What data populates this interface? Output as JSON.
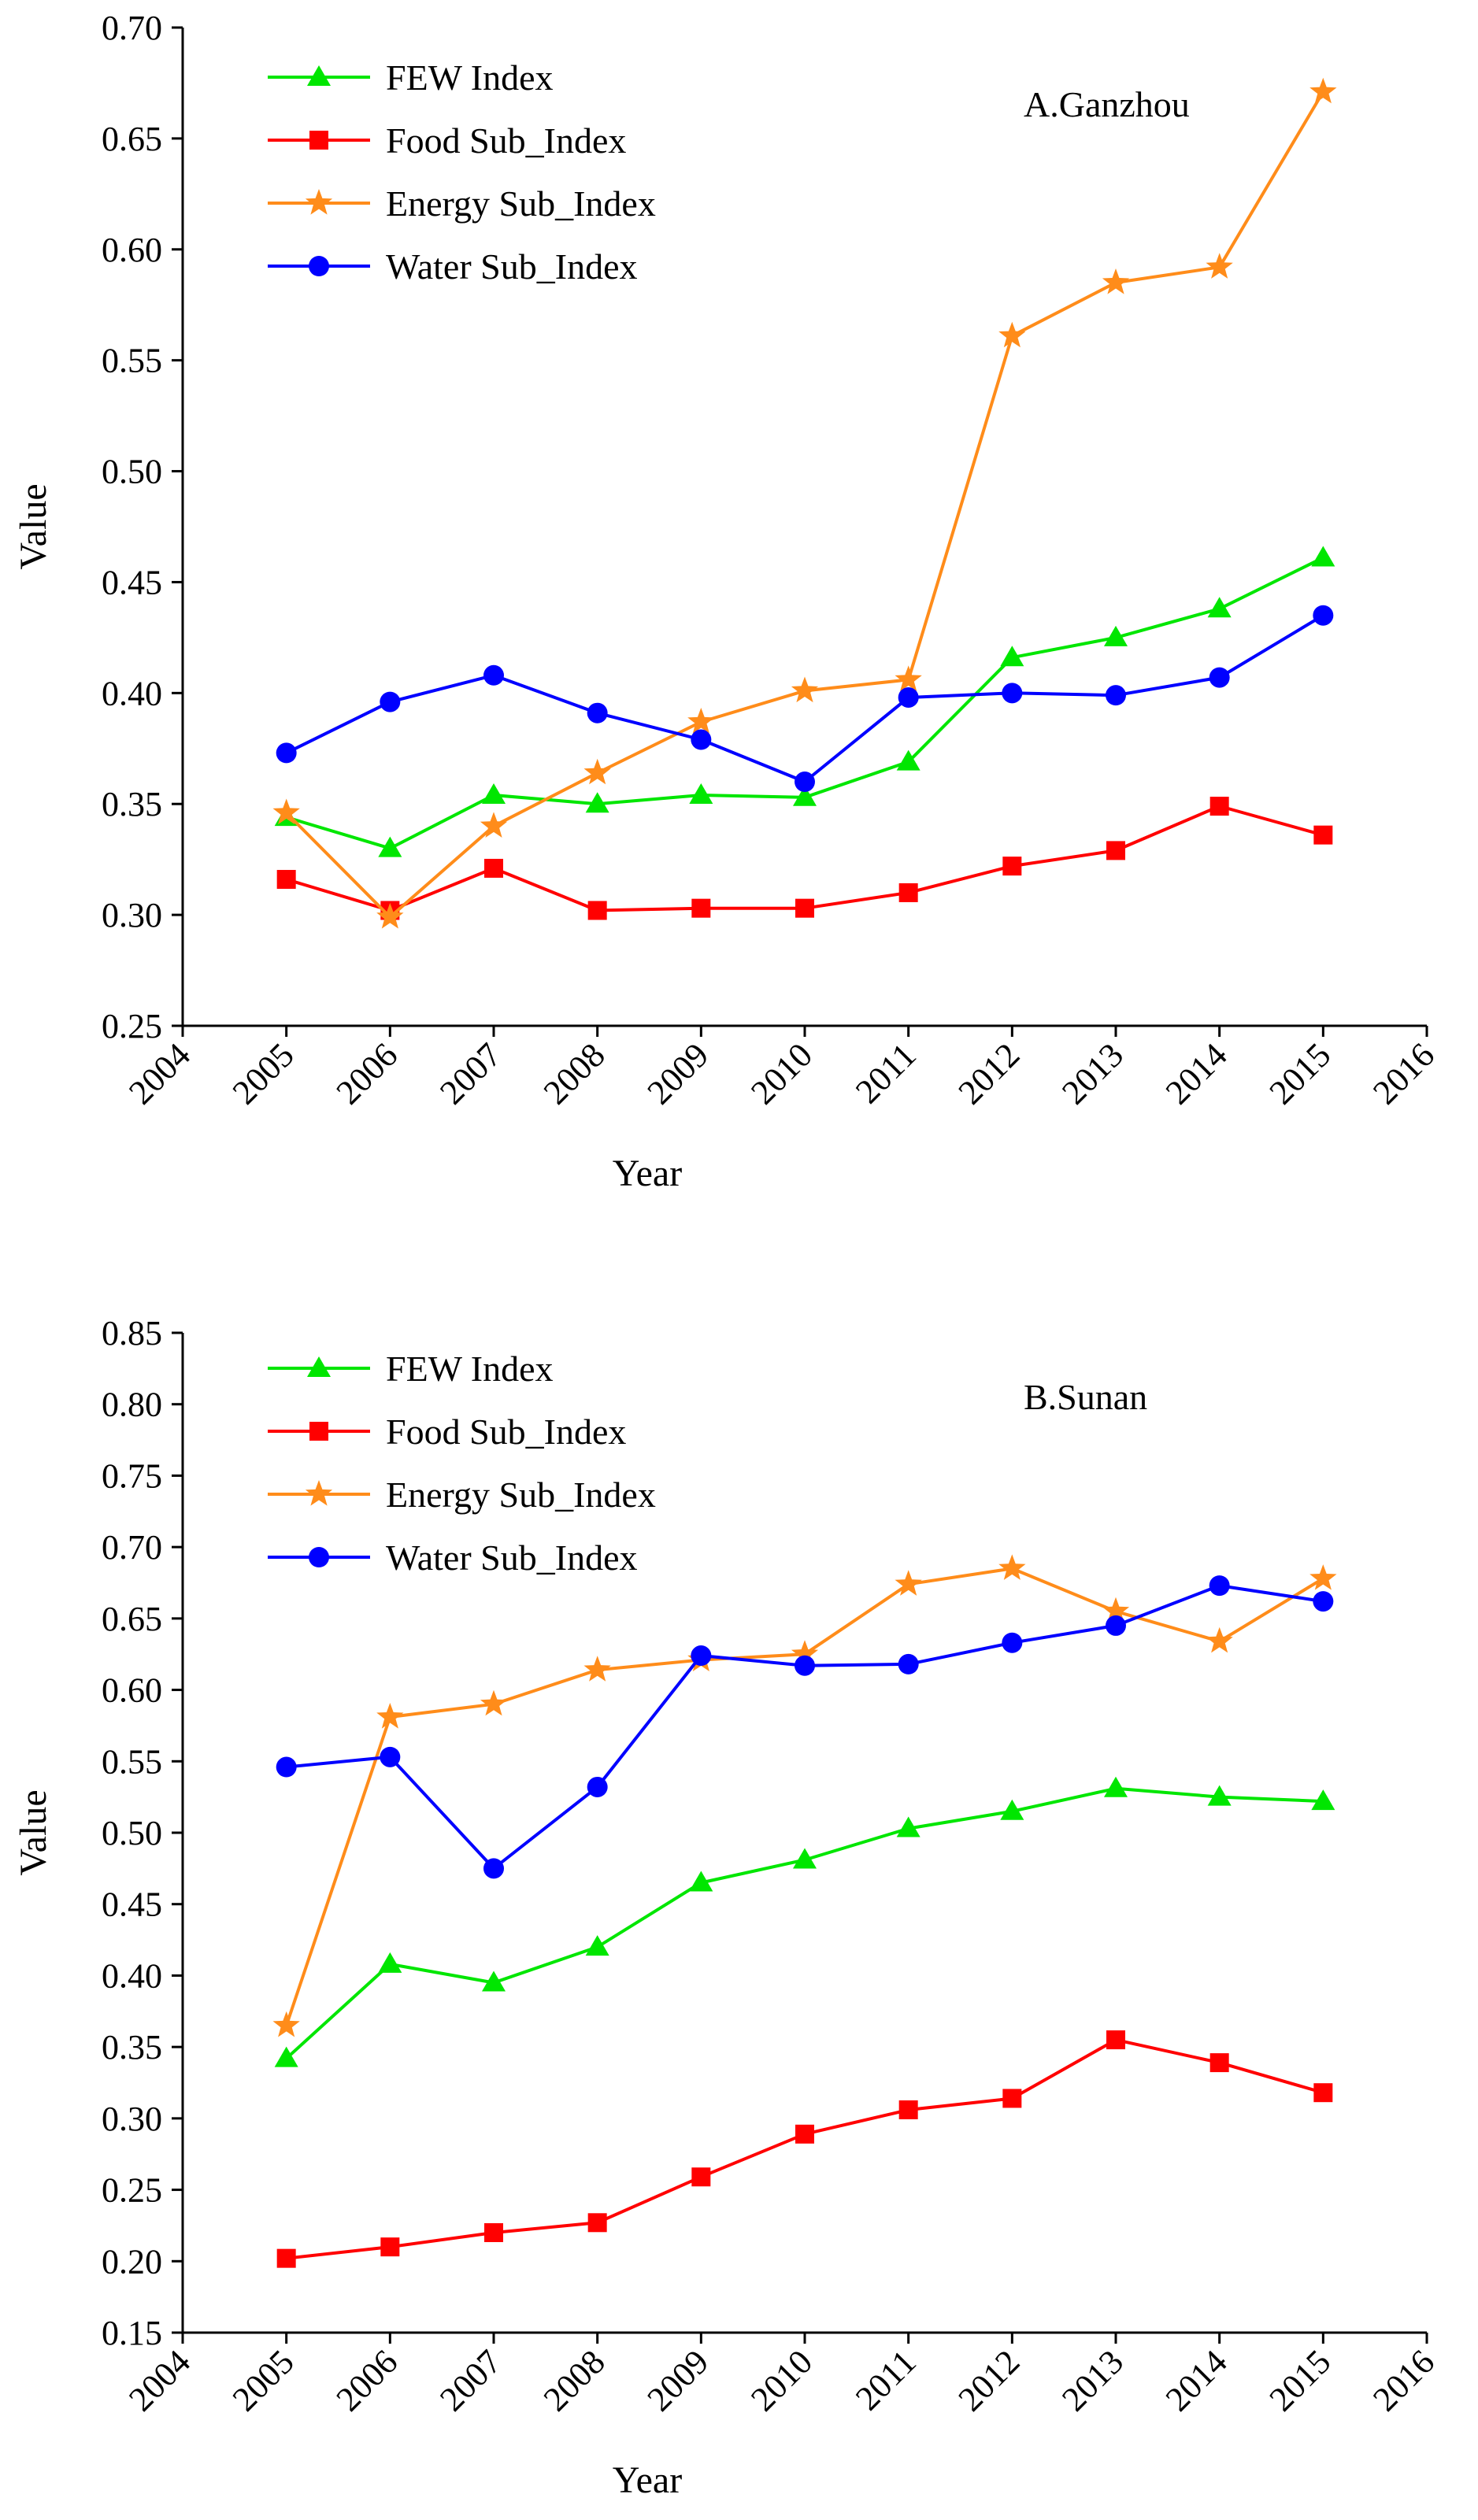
{
  "chart_data": [
    {
      "type": "line",
      "title": "A.Ganzhou",
      "xlabel": "Year",
      "ylabel": "Value",
      "xlim": [
        2004,
        2016
      ],
      "ylim": [
        0.25,
        0.7
      ],
      "x_ticks": [
        "2004",
        "2005",
        "2006",
        "2007",
        "2008",
        "2009",
        "2010",
        "2011",
        "2012",
        "2013",
        "2014",
        "2015",
        "2016"
      ],
      "y_ticks": [
        "0.25",
        "0.30",
        "0.35",
        "0.40",
        "0.45",
        "0.50",
        "0.55",
        "0.60",
        "0.65",
        "0.70"
      ],
      "x": [
        2005,
        2006,
        2007,
        2008,
        2009,
        2010,
        2011,
        2012,
        2013,
        2014,
        2015
      ],
      "legend_position": "top-left",
      "series": [
        {
          "name": "FEW Index",
          "color": "#00e600",
          "marker": "triangle",
          "values": [
            0.344,
            0.33,
            0.354,
            0.35,
            0.354,
            0.353,
            0.369,
            0.416,
            0.425,
            0.438,
            0.461
          ]
        },
        {
          "name": "Food Sub_Index",
          "color": "#ff0000",
          "marker": "square",
          "values": [
            0.316,
            0.302,
            0.321,
            0.302,
            0.303,
            0.303,
            0.31,
            0.322,
            0.329,
            0.349,
            0.336
          ]
        },
        {
          "name": "Energy Sub_Index",
          "color": "#ff8c1a",
          "marker": "star",
          "values": [
            0.346,
            0.299,
            0.34,
            0.364,
            0.387,
            0.401,
            0.406,
            0.561,
            0.585,
            0.592,
            0.671
          ]
        },
        {
          "name": "Water Sub_Index",
          "color": "#0000ff",
          "marker": "circle",
          "values": [
            0.373,
            0.396,
            0.408,
            0.391,
            0.379,
            0.36,
            0.398,
            0.4,
            0.399,
            0.407,
            0.435
          ]
        }
      ]
    },
    {
      "type": "line",
      "title": "B.Sunan",
      "xlabel": "Year",
      "ylabel": "Value",
      "xlim": [
        2004,
        2016
      ],
      "ylim": [
        0.15,
        0.85
      ],
      "x_ticks": [
        "2004",
        "2005",
        "2006",
        "2007",
        "2008",
        "2009",
        "2010",
        "2011",
        "2012",
        "2013",
        "2014",
        "2015",
        "2016"
      ],
      "y_ticks": [
        "0.15",
        "0.20",
        "0.25",
        "0.30",
        "0.35",
        "0.40",
        "0.45",
        "0.50",
        "0.55",
        "0.60",
        "0.65",
        "0.70",
        "0.75",
        "0.80",
        "0.85"
      ],
      "x": [
        2005,
        2006,
        2007,
        2008,
        2009,
        2010,
        2011,
        2012,
        2013,
        2014,
        2015
      ],
      "legend_position": "top-left",
      "series": [
        {
          "name": "FEW Index",
          "color": "#00e600",
          "marker": "triangle",
          "values": [
            0.342,
            0.408,
            0.395,
            0.42,
            0.465,
            0.481,
            0.503,
            0.515,
            0.531,
            0.525,
            0.522
          ]
        },
        {
          "name": "Food Sub_Index",
          "color": "#ff0000",
          "marker": "square",
          "values": [
            0.202,
            0.21,
            0.22,
            0.227,
            0.259,
            0.289,
            0.306,
            0.314,
            0.355,
            0.339,
            0.318
          ]
        },
        {
          "name": "Energy Sub_Index",
          "color": "#ff8c1a",
          "marker": "star",
          "values": [
            0.365,
            0.581,
            0.59,
            0.614,
            0.621,
            0.625,
            0.674,
            0.685,
            0.655,
            0.634,
            0.678
          ]
        },
        {
          "name": "Water Sub_Index",
          "color": "#0000ff",
          "marker": "circle",
          "values": [
            0.546,
            0.553,
            0.475,
            0.532,
            0.624,
            0.617,
            0.618,
            0.633,
            0.645,
            0.673,
            0.662
          ]
        }
      ]
    }
  ]
}
